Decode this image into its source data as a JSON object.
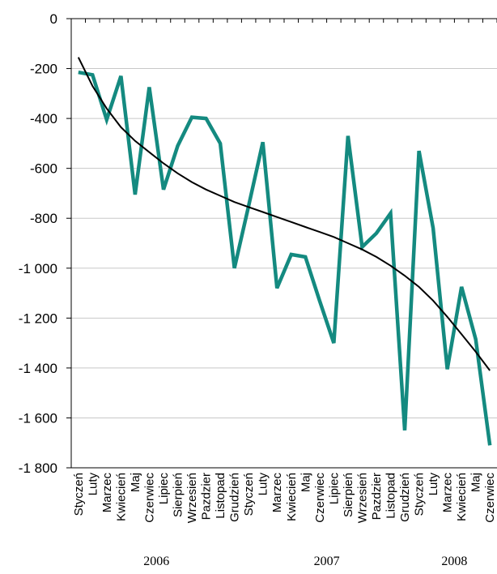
{
  "chart_data": {
    "type": "line",
    "ylim": [
      -1800,
      0
    ],
    "yticks": [
      0,
      -200,
      -400,
      -600,
      -800,
      -1000,
      -1200,
      -1400,
      -1600,
      -1800
    ],
    "ytick_labels": [
      "0",
      "-200",
      "-400",
      "-600",
      "-800",
      "-1 000",
      "-1 200",
      "-1 400",
      "-1 600",
      "-1 800"
    ],
    "categories": [
      "Styczeń",
      "Luty",
      "Marzec",
      "Kwiecień",
      "Maj",
      "Czerwiec",
      "Lipiec",
      "Sierpień",
      "Wrzesień",
      "Pazdzier",
      "Listopad",
      "Grudzień",
      "Styczeń",
      "Luty",
      "Marzec",
      "Kwiecień",
      "Maj",
      "Czerwiec",
      "Lipiec",
      "Sierpień",
      "Wrzesień",
      "Pazdzier",
      "Listopad",
      "Grudzień",
      "Styczeń",
      "Luty",
      "Marzec",
      "Kwiecień",
      "Maj",
      "Czerwiec"
    ],
    "years": [
      {
        "label": "2006",
        "start": 0,
        "end": 11
      },
      {
        "label": "2007",
        "start": 12,
        "end": 23
      },
      {
        "label": "2008",
        "start": 24,
        "end": 29
      }
    ],
    "series": [
      {
        "color": "#148a80",
        "values": [
          -215,
          -225,
          -405,
          -230,
          -705,
          -275,
          -685,
          -510,
          -395,
          -400,
          -500,
          -1000,
          -750,
          -495,
          -1080,
          -945,
          -955,
          -1130,
          -1300,
          -470,
          -915,
          -860,
          -780,
          -1650,
          -530,
          -840,
          -1405,
          -1075,
          -1285,
          -1710
        ]
      },
      {
        "color": "#000000",
        "values": [
          -155,
          -270,
          -360,
          -435,
          -490,
          -535,
          -580,
          -620,
          -655,
          -685,
          -710,
          -735,
          -755,
          -775,
          -795,
          -815,
          -835,
          -855,
          -875,
          -900,
          -925,
          -955,
          -990,
          -1030,
          -1075,
          -1130,
          -1195,
          -1265,
          -1335,
          -1410
        ]
      }
    ]
  }
}
